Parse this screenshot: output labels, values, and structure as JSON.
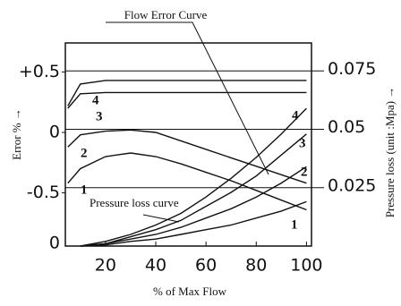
{
  "chart_data": {
    "type": "line",
    "title": "Flow  Error Curve",
    "annotation": "Pressure loss curve",
    "x_label": "% of Max Flow",
    "y_label": "Error % →",
    "y2_label": "Pressure loss (unit :Mpa) →",
    "x": [
      5,
      10,
      20,
      30,
      40,
      50,
      60,
      70,
      80,
      90,
      100
    ],
    "xlim": [
      4,
      102
    ],
    "xticks": [
      20,
      40,
      60,
      80,
      100
    ],
    "ylim": [
      -0.94,
      0.74
    ],
    "yticks": [
      {
        "value": 0.5,
        "label": "+0.5"
      },
      0,
      -0.5
    ],
    "y2lim": [
      0,
      0.087
    ],
    "y2ticks": [
      0,
      0.025,
      0.05,
      0.075
    ],
    "color": "#111111",
    "series": [
      {
        "name": "4",
        "values": [
          0.22,
          0.4,
          0.43,
          0.43,
          0.43,
          0.43,
          0.43,
          0.43,
          0.43,
          0.43,
          0.43
        ]
      },
      {
        "name": "3",
        "values": [
          0.2,
          0.32,
          0.33,
          0.33,
          0.33,
          0.33,
          0.33,
          0.33,
          0.33,
          0.33,
          0.33
        ]
      },
      {
        "name": "2",
        "values": [
          -0.12,
          -0.02,
          0.01,
          0.02,
          0.0,
          -0.07,
          -0.14,
          -0.21,
          -0.28,
          -0.35,
          -0.42
        ]
      },
      {
        "name": "1",
        "values": [
          -0.42,
          -0.3,
          -0.2,
          -0.17,
          -0.2,
          -0.26,
          -0.33,
          -0.4,
          -0.48,
          -0.56,
          -0.64
        ]
      },
      {
        "name": "4",
        "axis": "y2",
        "values": [
          null,
          0,
          0.002,
          0.005,
          0.009,
          0.014,
          0.021,
          0.029,
          0.038,
          0.048,
          0.059
        ]
      },
      {
        "name": "3",
        "axis": "y2",
        "values": [
          null,
          0,
          0.001,
          0.004,
          0.007,
          0.011,
          0.017,
          0.023,
          0.03,
          0.039,
          0.048
        ]
      },
      {
        "name": "2",
        "axis": "y2",
        "values": [
          null,
          0,
          0.001,
          0.003,
          0.005,
          0.008,
          0.012,
          0.016,
          0.021,
          0.027,
          0.034
        ]
      },
      {
        "name": "1",
        "axis": "y2",
        "values": [
          null,
          0,
          0.0005,
          0.002,
          0.003,
          0.005,
          0.007,
          0.009,
          0.012,
          0.015,
          0.019
        ]
      }
    ]
  }
}
